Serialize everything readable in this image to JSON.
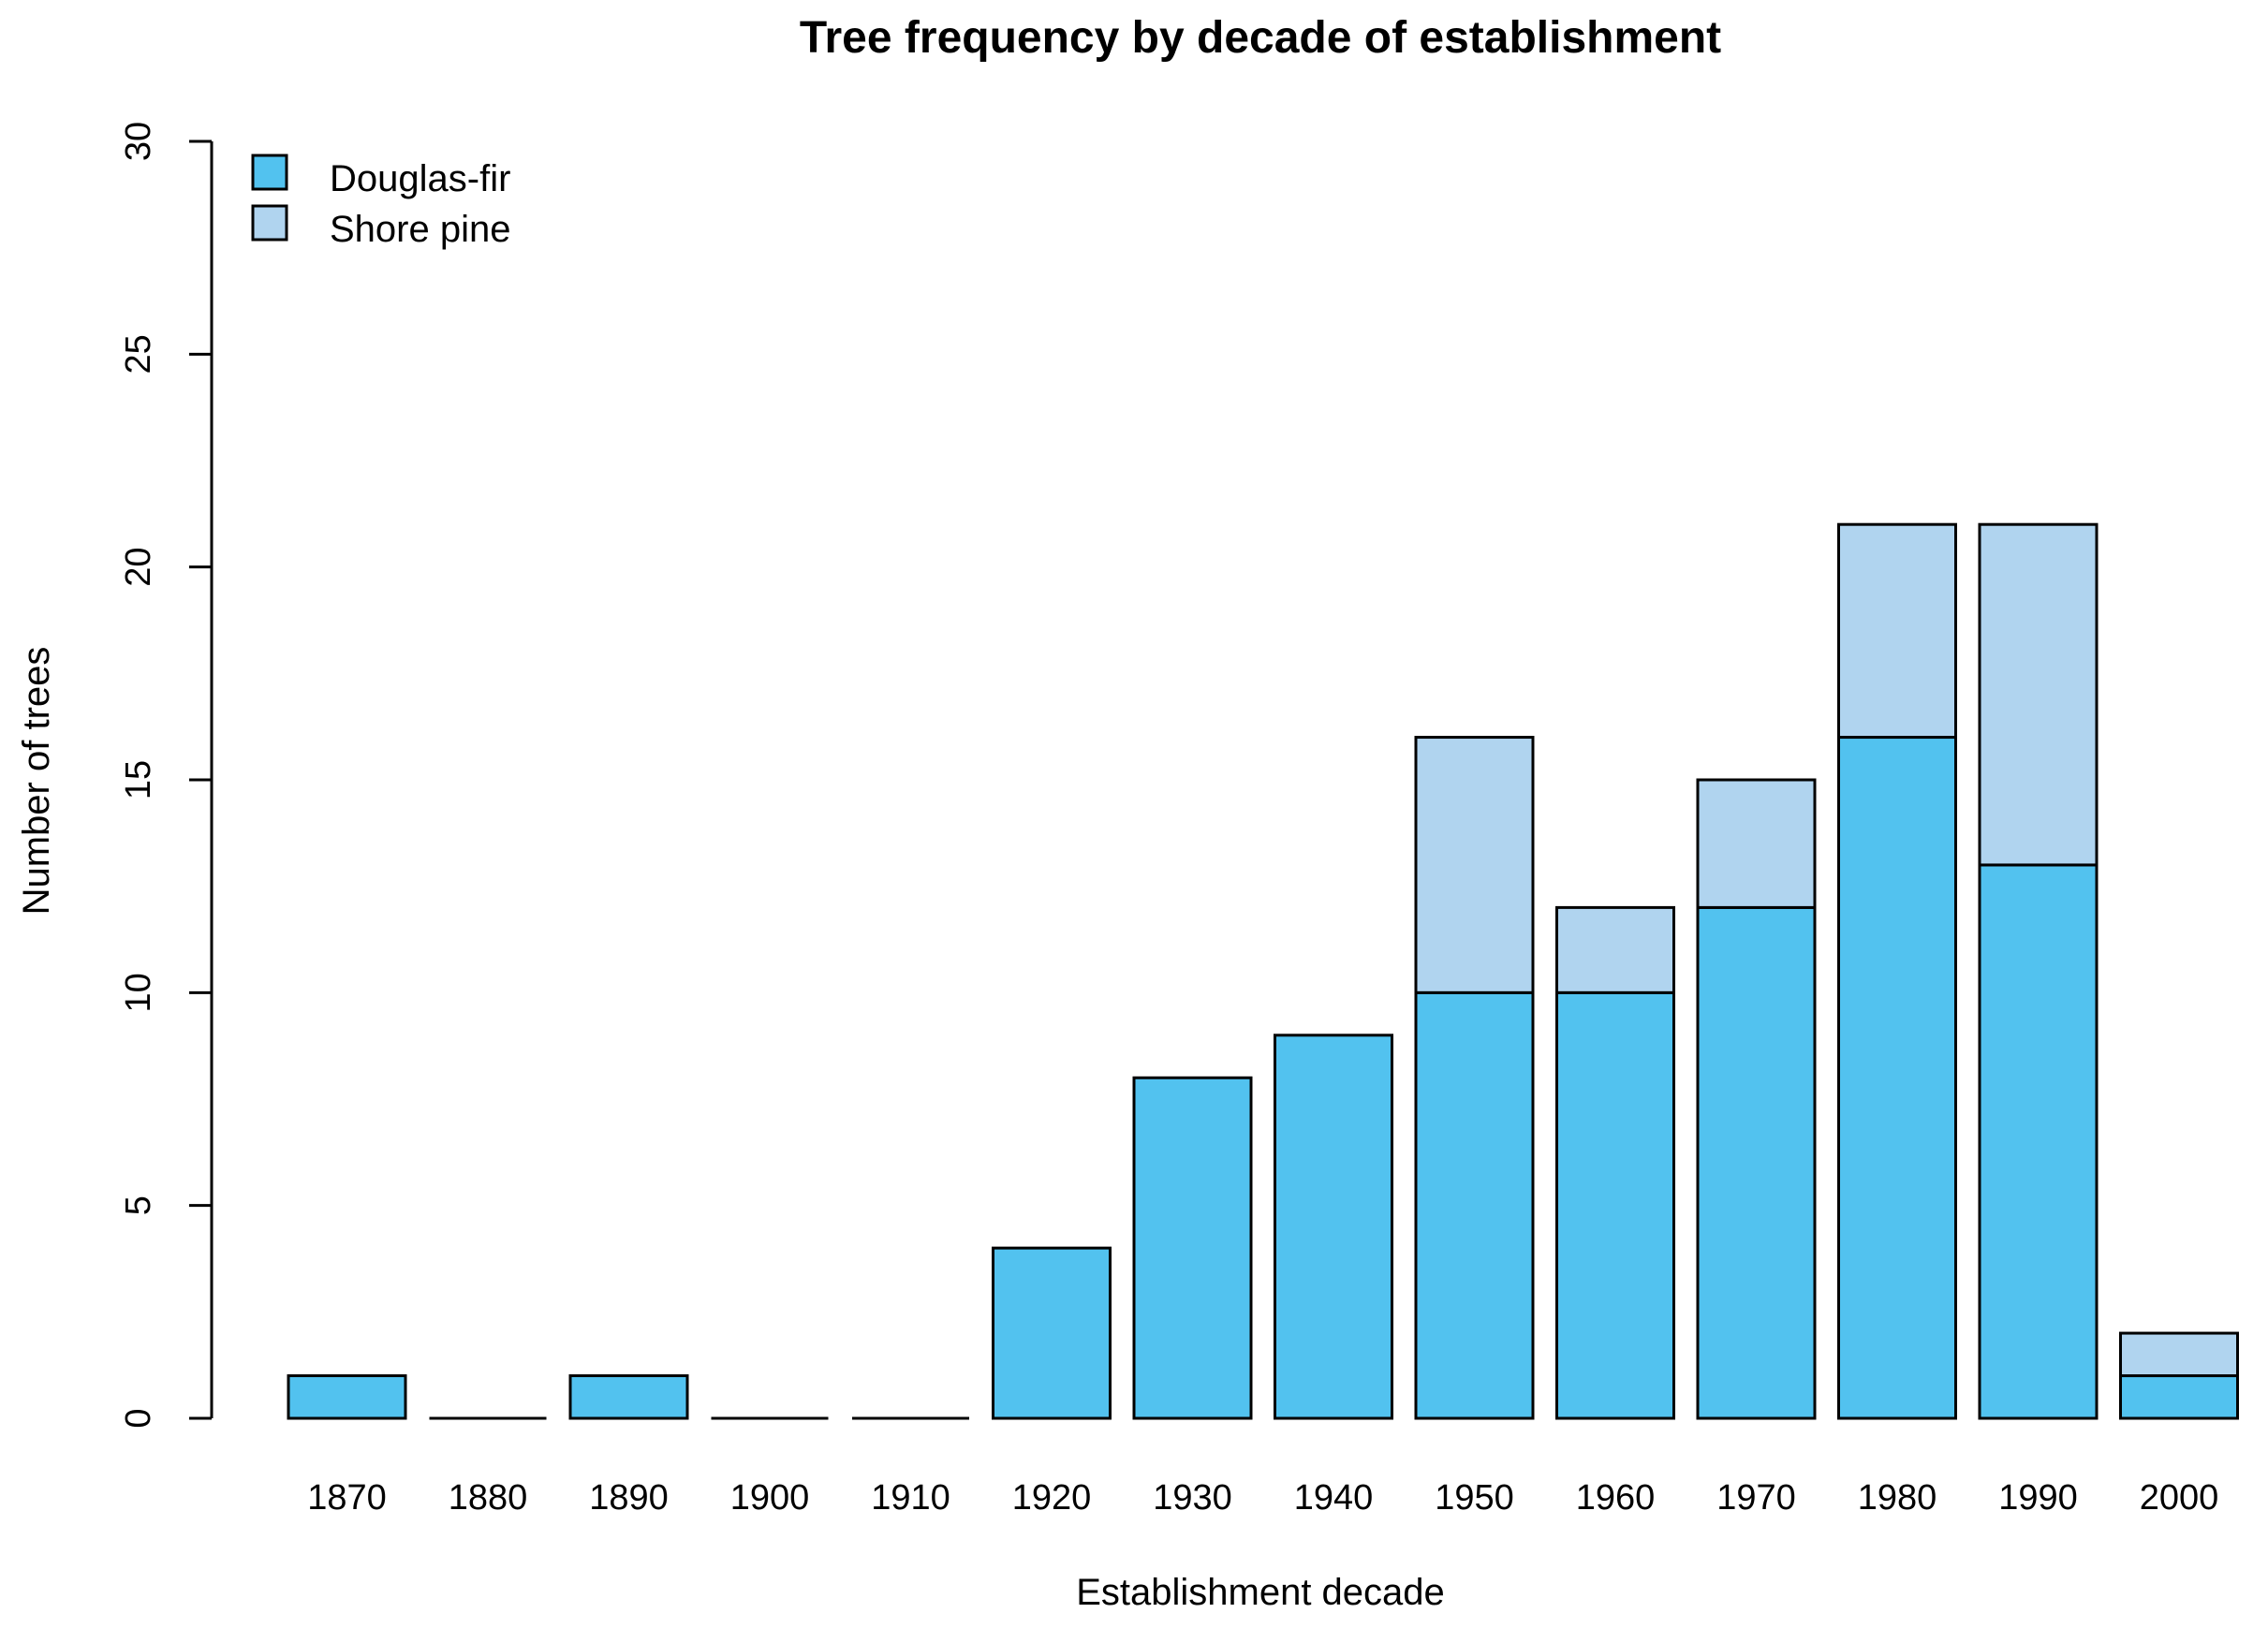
{
  "chart_data": {
    "type": "bar",
    "stacked": true,
    "title": "Tree frequency by decade of establishment",
    "xlabel": "Establishment decade",
    "ylabel": "Number of trees",
    "ylim": [
      0,
      30
    ],
    "yticks": [
      0,
      5,
      10,
      15,
      20,
      25,
      30
    ],
    "categories": [
      "1870",
      "1880",
      "1890",
      "1900",
      "1910",
      "1920",
      "1930",
      "1940",
      "1950",
      "1960",
      "1970",
      "1980",
      "1990",
      "2000"
    ],
    "series": [
      {
        "name": "Douglas-fir",
        "color": "#52c2ef",
        "values": [
          1,
          0,
          1,
          0,
          0,
          4,
          8,
          9,
          10,
          10,
          12,
          16,
          13,
          1
        ]
      },
      {
        "name": "Shore pine",
        "color": "#b0d4ef",
        "values": [
          0,
          0,
          0,
          0,
          0,
          0,
          0,
          0,
          6,
          2,
          3,
          5,
          8,
          1
        ]
      }
    ],
    "legend_position": "top-left",
    "grid": false
  }
}
